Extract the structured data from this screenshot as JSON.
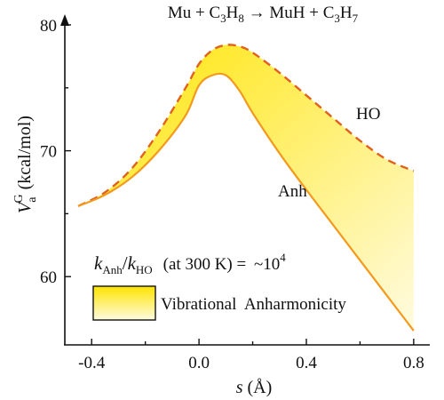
{
  "title": {
    "reactant1": "Mu",
    "plus1": " + ",
    "reactant2_base": "C",
    "reactant2_sub1": "3",
    "reactant2_mid": "H",
    "reactant2_sub2": "8",
    "arrow": " → ",
    "product1": "MuH",
    "plus2": " + ",
    "product2_base": "C",
    "product2_sub1": "3",
    "product2_mid": "H",
    "product2_sub2": "7"
  },
  "ylabel": {
    "symbol": "V",
    "superscript": "G",
    "subscript": "a",
    "unit": " (kcal/mol)"
  },
  "xlabel": {
    "symbol": "s",
    "unit": " (Å)"
  },
  "annotation": {
    "k1": "k",
    "k1_sub": "Anh",
    "slash": "/",
    "k2": "k",
    "k2_sub": "HO",
    "condition": "(at 300 K) = ",
    "value": "~10",
    "value_exp": "4"
  },
  "legend": {
    "label": "Vibrational  Anharmonicity"
  },
  "colors": {
    "anh_line": "#f39a1e",
    "ho_line": "#e0621e",
    "fill_top": "#ffe400",
    "fill_bottom": "#fffbe0",
    "axis": "#111111"
  },
  "chart_data": {
    "type": "line",
    "xlabel": "s (Å)",
    "ylabel": "V_a^G (kcal/mol)",
    "xlim": [
      -0.5,
      0.86
    ],
    "ylim": [
      55,
      80
    ],
    "x_ticks": [
      -0.4,
      0.0,
      0.4,
      0.8
    ],
    "x_tick_labels": [
      "-0.4",
      "0.0",
      "0.4",
      "0.8"
    ],
    "y_ticks": [
      60,
      70,
      80
    ],
    "y_tick_labels": [
      "60",
      "70",
      "80"
    ],
    "grid": false,
    "shaded_region": "between Anh and HO curves",
    "series": [
      {
        "name": "HO",
        "style": "dashed",
        "x": [
          -0.45,
          -0.35,
          -0.25,
          -0.15,
          -0.05,
          0.0,
          0.05,
          0.1,
          0.15,
          0.2,
          0.3,
          0.4,
          0.5,
          0.6,
          0.7,
          0.8
        ],
        "y": [
          65.6,
          66.7,
          68.6,
          71.5,
          75.0,
          76.9,
          78.0,
          78.4,
          78.3,
          77.8,
          76.2,
          74.4,
          72.6,
          70.8,
          69.3,
          68.4
        ]
      },
      {
        "name": "Anh",
        "style": "solid",
        "x": [
          -0.45,
          -0.35,
          -0.25,
          -0.15,
          -0.05,
          0.0,
          0.05,
          0.1,
          0.15,
          0.2,
          0.3,
          0.4,
          0.5,
          0.6,
          0.7,
          0.8
        ],
        "y": [
          65.6,
          66.5,
          67.9,
          70.0,
          72.8,
          75.2,
          76.0,
          76.0,
          74.8,
          73.0,
          69.8,
          66.9,
          64.1,
          61.3,
          58.5,
          55.7
        ]
      }
    ]
  }
}
